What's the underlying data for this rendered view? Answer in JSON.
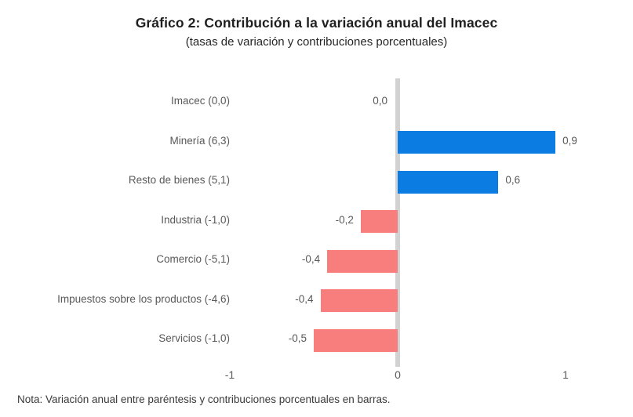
{
  "header": {
    "title": "Gráfico 2: Contribución a la variación anual del Imacec",
    "subtitle": "(tasas de variación y contribuciones porcentuales)"
  },
  "footer": {
    "note": "Nota: Variación anual entre paréntesis y contribuciones porcentuales en barras."
  },
  "chart_data": {
    "type": "bar",
    "orientation": "horizontal",
    "title": "Gráfico 2: Contribución a la variación anual del Imacec",
    "subtitle": "(tasas de variación y contribuciones porcentuales)",
    "categories": [
      "Imacec (0,0)",
      "Minería (6,3)",
      "Resto de bienes (5,1)",
      "Industria (-1,0)",
      "Comercio (-5,1)",
      "Impuestos sobre los productos (-4,6)",
      "Servicios (-1,0)"
    ],
    "values": [
      0.0,
      0.9,
      0.6,
      -0.2,
      -0.4,
      -0.4,
      -0.5
    ],
    "value_labels": [
      "0,0",
      "0,9",
      "0,6",
      "-0,2",
      "-0,4",
      "-0,4",
      "-0,5"
    ],
    "bar_lengths_est": [
      0.0,
      0.94,
      0.6,
      -0.22,
      -0.42,
      -0.46,
      -0.5
    ],
    "x_ticks": [
      -1,
      0,
      1
    ],
    "x_tick_labels": [
      "-1",
      "0",
      "1"
    ],
    "xlim": [
      -1,
      1
    ],
    "grid": "off",
    "legend": "none",
    "note": "Nota: Variación anual entre paréntesis y contribuciones porcentuales en barras.",
    "colors": {
      "positive_bar": "#0a7ce2",
      "negative_bar": "#f87d7d",
      "zero_line": "#d2d2d2",
      "category_text": "#595959",
      "value_text": "#595959",
      "tick_text": "#595959",
      "title_text": "#1f1f1f",
      "note_text": "#3a3a3a"
    }
  }
}
